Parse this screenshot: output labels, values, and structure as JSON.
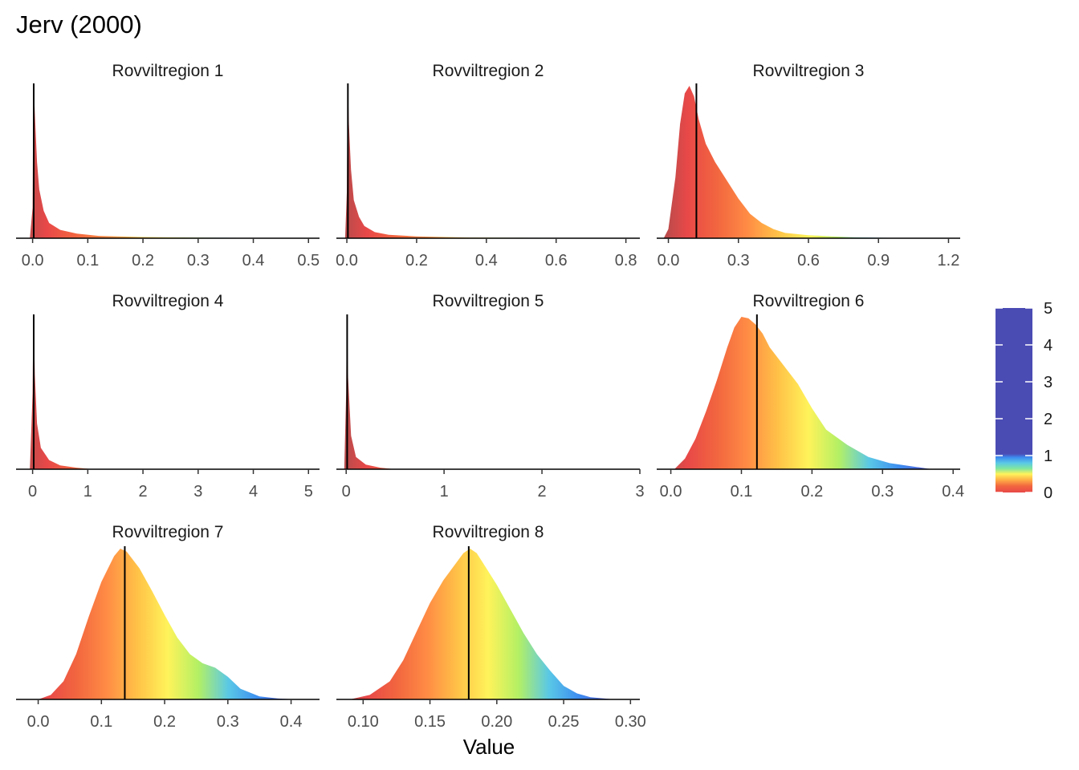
{
  "chart_data": {
    "type": "area",
    "title": "Jerv (2000)",
    "xlabel": "Value",
    "legend": {
      "position": "right",
      "ticks": [
        "0",
        "1",
        "2",
        "3",
        "4",
        "5"
      ],
      "range": [
        0,
        5
      ]
    },
    "colors": [
      "#a64d4d",
      "#e84848",
      "#f2663f",
      "#ff8c45",
      "#ffc247",
      "#fff35a",
      "#b4f064",
      "#5ac8e6",
      "#3c8cf0",
      "#5a5ad2",
      "#4b4bb4"
    ],
    "panels": [
      {
        "label": "Rovviltregion 1",
        "xlim": [
          -0.03,
          0.52
        ],
        "ticks": [
          0.0,
          0.1,
          0.2,
          0.3,
          0.4,
          0.5
        ],
        "tick_labels": [
          "0.0",
          "0.1",
          "0.2",
          "0.3",
          "0.4",
          "0.5"
        ],
        "vline": 0.002,
        "density": {
          "x": [
            -0.005,
            0.0,
            0.001,
            0.002,
            0.004,
            0.008,
            0.012,
            0.02,
            0.03,
            0.05,
            0.08,
            0.12,
            0.2,
            0.3,
            0.4,
            0.5
          ],
          "y": [
            0.0,
            0.2,
            0.85,
            1.0,
            0.82,
            0.5,
            0.32,
            0.18,
            0.1,
            0.055,
            0.03,
            0.015,
            0.008,
            0.004,
            0.002,
            0.0
          ]
        }
      },
      {
        "label": "Rovviltregion 2",
        "xlim": [
          -0.03,
          0.84
        ],
        "ticks": [
          0.0,
          0.2,
          0.4,
          0.6,
          0.8
        ],
        "tick_labels": [
          "0.0",
          "0.2",
          "0.4",
          "0.6",
          "0.8"
        ],
        "vline": 0.003,
        "density": {
          "x": [
            -0.005,
            0.0,
            0.002,
            0.003,
            0.006,
            0.012,
            0.02,
            0.035,
            0.05,
            0.08,
            0.12,
            0.2,
            0.35,
            0.5,
            0.8
          ],
          "y": [
            0.0,
            0.3,
            0.9,
            1.0,
            0.75,
            0.45,
            0.25,
            0.14,
            0.08,
            0.04,
            0.022,
            0.012,
            0.005,
            0.003,
            0.0
          ]
        }
      },
      {
        "label": "Rovviltregion 3",
        "xlim": [
          -0.05,
          1.25
        ],
        "ticks": [
          0.0,
          0.3,
          0.6,
          0.9,
          1.2
        ],
        "tick_labels": [
          "0.0",
          "0.3",
          "0.6",
          "0.9",
          "1.2"
        ],
        "vline": 0.12,
        "density": {
          "x": [
            -0.02,
            0.0,
            0.03,
            0.05,
            0.07,
            0.09,
            0.11,
            0.13,
            0.16,
            0.2,
            0.25,
            0.3,
            0.35,
            0.4,
            0.45,
            0.5,
            0.6,
            0.7,
            0.8,
            0.9,
            1.0,
            1.15
          ],
          "y": [
            0.0,
            0.06,
            0.4,
            0.75,
            0.95,
            1.0,
            0.93,
            0.78,
            0.62,
            0.5,
            0.38,
            0.26,
            0.16,
            0.1,
            0.06,
            0.035,
            0.02,
            0.012,
            0.006,
            0.003,
            0.002,
            0.0
          ]
        }
      },
      {
        "label": "Rovviltregion 4",
        "xlim": [
          -0.3,
          5.2
        ],
        "ticks": [
          0,
          1,
          2,
          3,
          4,
          5
        ],
        "tick_labels": [
          "0",
          "1",
          "2",
          "3",
          "4",
          "5"
        ],
        "vline": 0.02,
        "density": {
          "x": [
            -0.05,
            0.0,
            0.01,
            0.02,
            0.04,
            0.08,
            0.15,
            0.3,
            0.5,
            0.8,
            1.1
          ],
          "y": [
            0.0,
            0.5,
            0.9,
            1.0,
            0.62,
            0.3,
            0.14,
            0.06,
            0.025,
            0.01,
            0.0
          ]
        }
      },
      {
        "label": "Rovviltregion 5",
        "xlim": [
          -0.1,
          3.0
        ],
        "ticks": [
          0,
          1,
          2,
          3
        ],
        "tick_labels": [
          "0",
          "1",
          "2",
          "3"
        ],
        "vline": 0.01,
        "density": {
          "x": [
            -0.02,
            0.0,
            0.005,
            0.01,
            0.02,
            0.05,
            0.1,
            0.2,
            0.35,
            0.5
          ],
          "y": [
            0.0,
            0.5,
            0.92,
            1.0,
            0.6,
            0.22,
            0.08,
            0.03,
            0.01,
            0.0
          ]
        }
      },
      {
        "label": "Rovviltregion 6",
        "xlim": [
          -0.02,
          0.41
        ],
        "ticks": [
          0.0,
          0.1,
          0.2,
          0.3,
          0.4
        ],
        "tick_labels": [
          "0.0",
          "0.1",
          "0.2",
          "0.3",
          "0.4"
        ],
        "vline": 0.122,
        "density": {
          "x": [
            0.005,
            0.02,
            0.035,
            0.05,
            0.065,
            0.08,
            0.09,
            0.1,
            0.11,
            0.12,
            0.13,
            0.14,
            0.16,
            0.18,
            0.2,
            0.22,
            0.25,
            0.28,
            0.31,
            0.34,
            0.37
          ],
          "y": [
            0.0,
            0.07,
            0.2,
            0.38,
            0.58,
            0.8,
            0.93,
            1.0,
            0.99,
            0.95,
            0.89,
            0.8,
            0.68,
            0.56,
            0.4,
            0.26,
            0.16,
            0.08,
            0.04,
            0.02,
            0.0
          ]
        }
      },
      {
        "label": "Rovviltregion 7",
        "xlim": [
          -0.035,
          0.445
        ],
        "ticks": [
          0.0,
          0.1,
          0.2,
          0.3,
          0.4
        ],
        "tick_labels": [
          "0.0",
          "0.1",
          "0.2",
          "0.3",
          "0.4"
        ],
        "vline": 0.137,
        "density": {
          "x": [
            0.0,
            0.02,
            0.04,
            0.06,
            0.08,
            0.1,
            0.12,
            0.13,
            0.14,
            0.16,
            0.18,
            0.2,
            0.22,
            0.24,
            0.26,
            0.28,
            0.3,
            0.32,
            0.35,
            0.38,
            0.41
          ],
          "y": [
            0.0,
            0.03,
            0.12,
            0.3,
            0.55,
            0.78,
            0.95,
            1.0,
            0.98,
            0.87,
            0.72,
            0.56,
            0.41,
            0.3,
            0.24,
            0.21,
            0.15,
            0.07,
            0.02,
            0.006,
            0.0
          ]
        }
      },
      {
        "label": "Rovviltregion 8",
        "xlim": [
          0.08,
          0.307
        ],
        "ticks": [
          0.1,
          0.15,
          0.2,
          0.25,
          0.3
        ],
        "tick_labels": [
          "0.10",
          "0.15",
          "0.20",
          "0.25",
          "0.30"
        ],
        "vline": 0.179,
        "density": {
          "x": [
            0.09,
            0.105,
            0.12,
            0.13,
            0.14,
            0.15,
            0.16,
            0.17,
            0.175,
            0.18,
            0.185,
            0.19,
            0.2,
            0.21,
            0.22,
            0.23,
            0.24,
            0.25,
            0.26,
            0.27,
            0.288
          ],
          "y": [
            0.0,
            0.03,
            0.12,
            0.26,
            0.45,
            0.64,
            0.79,
            0.91,
            0.97,
            1.0,
            0.97,
            0.9,
            0.76,
            0.6,
            0.44,
            0.3,
            0.19,
            0.09,
            0.04,
            0.015,
            0.0
          ]
        }
      }
    ]
  }
}
